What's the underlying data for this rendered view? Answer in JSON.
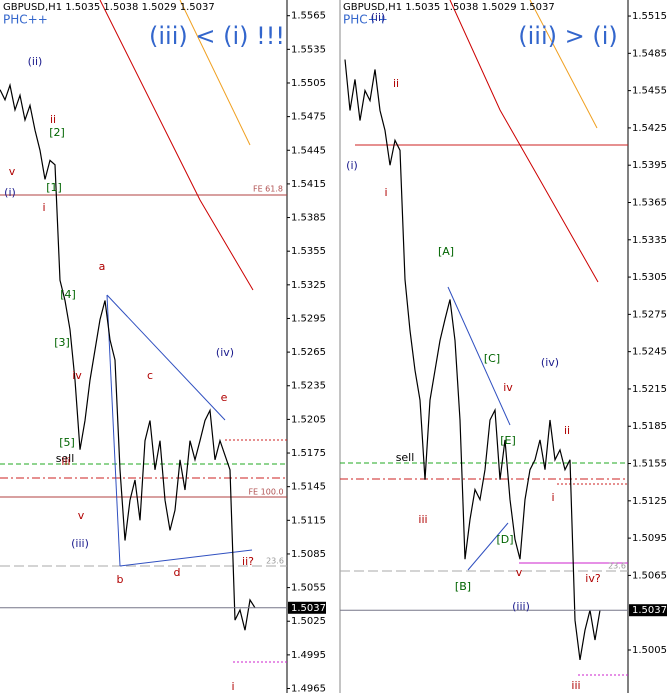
{
  "chart_data": [
    {
      "type": "line",
      "header": "GBPUSD,H1  1.5035 1.5038 1.5029 1.5037",
      "indicator": "PHC++",
      "title": "(iii) < (i) !!!",
      "color": "#000000",
      "last_price": 1.5037,
      "values": [
        1.5499,
        1.549,
        1.5503,
        1.5481,
        1.5494,
        1.5472,
        1.5485,
        1.5463,
        1.5445,
        1.5419,
        1.5436,
        1.5432,
        1.5329,
        1.5311,
        1.5285,
        1.524,
        1.5178,
        1.5204,
        1.524,
        1.5267,
        1.5294,
        1.5311,
        1.5276,
        1.5258,
        1.516,
        1.5097,
        1.5133,
        1.5151,
        1.5115,
        1.5186,
        1.5204,
        1.516,
        1.5186,
        1.5133,
        1.5106,
        1.5124,
        1.5169,
        1.5142,
        1.5186,
        1.5169,
        1.5186,
        1.5204,
        1.5213,
        1.5169,
        1.5186,
        1.5173,
        1.516,
        1.5026,
        1.5035,
        1.5017,
        1.5044,
        1.5037
      ],
      "ylim": [
        1.4961,
        1.5579
      ],
      "yticks": [
        1.5565,
        1.5535,
        1.5505,
        1.5475,
        1.5445,
        1.5415,
        1.5385,
        1.5355,
        1.5325,
        1.5295,
        1.5265,
        1.5235,
        1.5205,
        1.5175,
        1.5145,
        1.5115,
        1.5085,
        1.5055,
        1.5025,
        1.4995,
        1.4965
      ],
      "annotations": [
        {
          "text": "(ii)",
          "color": "#1a1a8c"
        },
        {
          "text": "ii",
          "color": "#b00000"
        },
        {
          "text": "[2]",
          "color": "#006400"
        },
        {
          "text": "v",
          "color": "#b00000"
        },
        {
          "text": "(i)",
          "color": "#1a1a8c"
        },
        {
          "text": "[1]",
          "color": "#006400"
        },
        {
          "text": "i",
          "color": "#b00000"
        },
        {
          "text": "a",
          "color": "#b00000"
        },
        {
          "text": "[4]",
          "color": "#006400"
        },
        {
          "text": "[3]",
          "color": "#006400"
        },
        {
          "text": "iv",
          "color": "#b00000"
        },
        {
          "text": "c",
          "color": "#b00000"
        },
        {
          "text": "(iv)",
          "color": "#1a1a8c"
        },
        {
          "text": "e",
          "color": "#b00000"
        },
        {
          "text": "[5]",
          "color": "#006400"
        },
        {
          "text": "sell",
          "color": "#000000"
        },
        {
          "text": "iii",
          "color": "#b00000"
        },
        {
          "text": "v",
          "color": "#b00000"
        },
        {
          "text": "(iii)",
          "color": "#1a1a8c"
        },
        {
          "text": "b",
          "color": "#b00000"
        },
        {
          "text": "d",
          "color": "#b00000"
        },
        {
          "text": "ii?",
          "color": "#b00000"
        },
        {
          "text": "i",
          "color": "#b00000"
        },
        {
          "text": "23.6",
          "color": "#999999"
        },
        {
          "text": "FE 61.8",
          "color": "#b05050"
        },
        {
          "text": "FE 100.0",
          "color": "#b05050"
        }
      ]
    },
    {
      "type": "line",
      "header": "GBPUSD,H1  1.5035 1.5038 1.5029 1.5037",
      "indicator": "PHC++",
      "title": "(iii) > (i)",
      "color": "#000000",
      "last_price": 1.5037,
      "values": [
        1.548,
        1.5439,
        1.5464,
        1.5431,
        1.5455,
        1.5447,
        1.5472,
        1.5439,
        1.5423,
        1.5395,
        1.5415,
        1.5407,
        1.5303,
        1.5262,
        1.523,
        1.5206,
        1.5142,
        1.5206,
        1.523,
        1.5254,
        1.5271,
        1.5287,
        1.5254,
        1.519,
        1.5078,
        1.511,
        1.5134,
        1.5126,
        1.515,
        1.519,
        1.5198,
        1.5142,
        1.5174,
        1.5126,
        1.5094,
        1.5078,
        1.5126,
        1.515,
        1.5158,
        1.5174,
        1.515,
        1.519,
        1.5158,
        1.5166,
        1.515,
        1.5158,
        1.5029,
        1.4997,
        1.5021,
        1.5037,
        1.5013,
        1.5037
      ],
      "ylim": [
        1.49704,
        1.55279
      ],
      "yticks": [
        1.5515,
        1.5485,
        1.5455,
        1.5425,
        1.5395,
        1.5365,
        1.5335,
        1.5305,
        1.5275,
        1.5245,
        1.5215,
        1.5185,
        1.5155,
        1.5125,
        1.5095,
        1.5065,
        1.5005
      ],
      "annotations": [
        {
          "text": "(ii)",
          "color": "#1a1a8c"
        },
        {
          "text": "ii",
          "color": "#b00000"
        },
        {
          "text": "(i)",
          "color": "#1a1a8c"
        },
        {
          "text": "i",
          "color": "#b00000"
        },
        {
          "text": "[A]",
          "color": "#006400"
        },
        {
          "text": "[C]",
          "color": "#006400"
        },
        {
          "text": "iv",
          "color": "#b00000"
        },
        {
          "text": "(iv)",
          "color": "#1a1a8c"
        },
        {
          "text": "ii",
          "color": "#b00000"
        },
        {
          "text": "[E]",
          "color": "#006400"
        },
        {
          "text": "sell",
          "color": "#000000"
        },
        {
          "text": "i",
          "color": "#b00000"
        },
        {
          "text": "iii",
          "color": "#b00000"
        },
        {
          "text": "[D]",
          "color": "#006400"
        },
        {
          "text": "v",
          "color": "#b00000"
        },
        {
          "text": "[B]",
          "color": "#006400"
        },
        {
          "text": "iv?",
          "color": "#b00000"
        },
        {
          "text": "(iii)",
          "color": "#1a1a8c"
        },
        {
          "text": "iii",
          "color": "#b00000"
        },
        {
          "text": "23.6",
          "color": "#999999"
        }
      ]
    }
  ]
}
